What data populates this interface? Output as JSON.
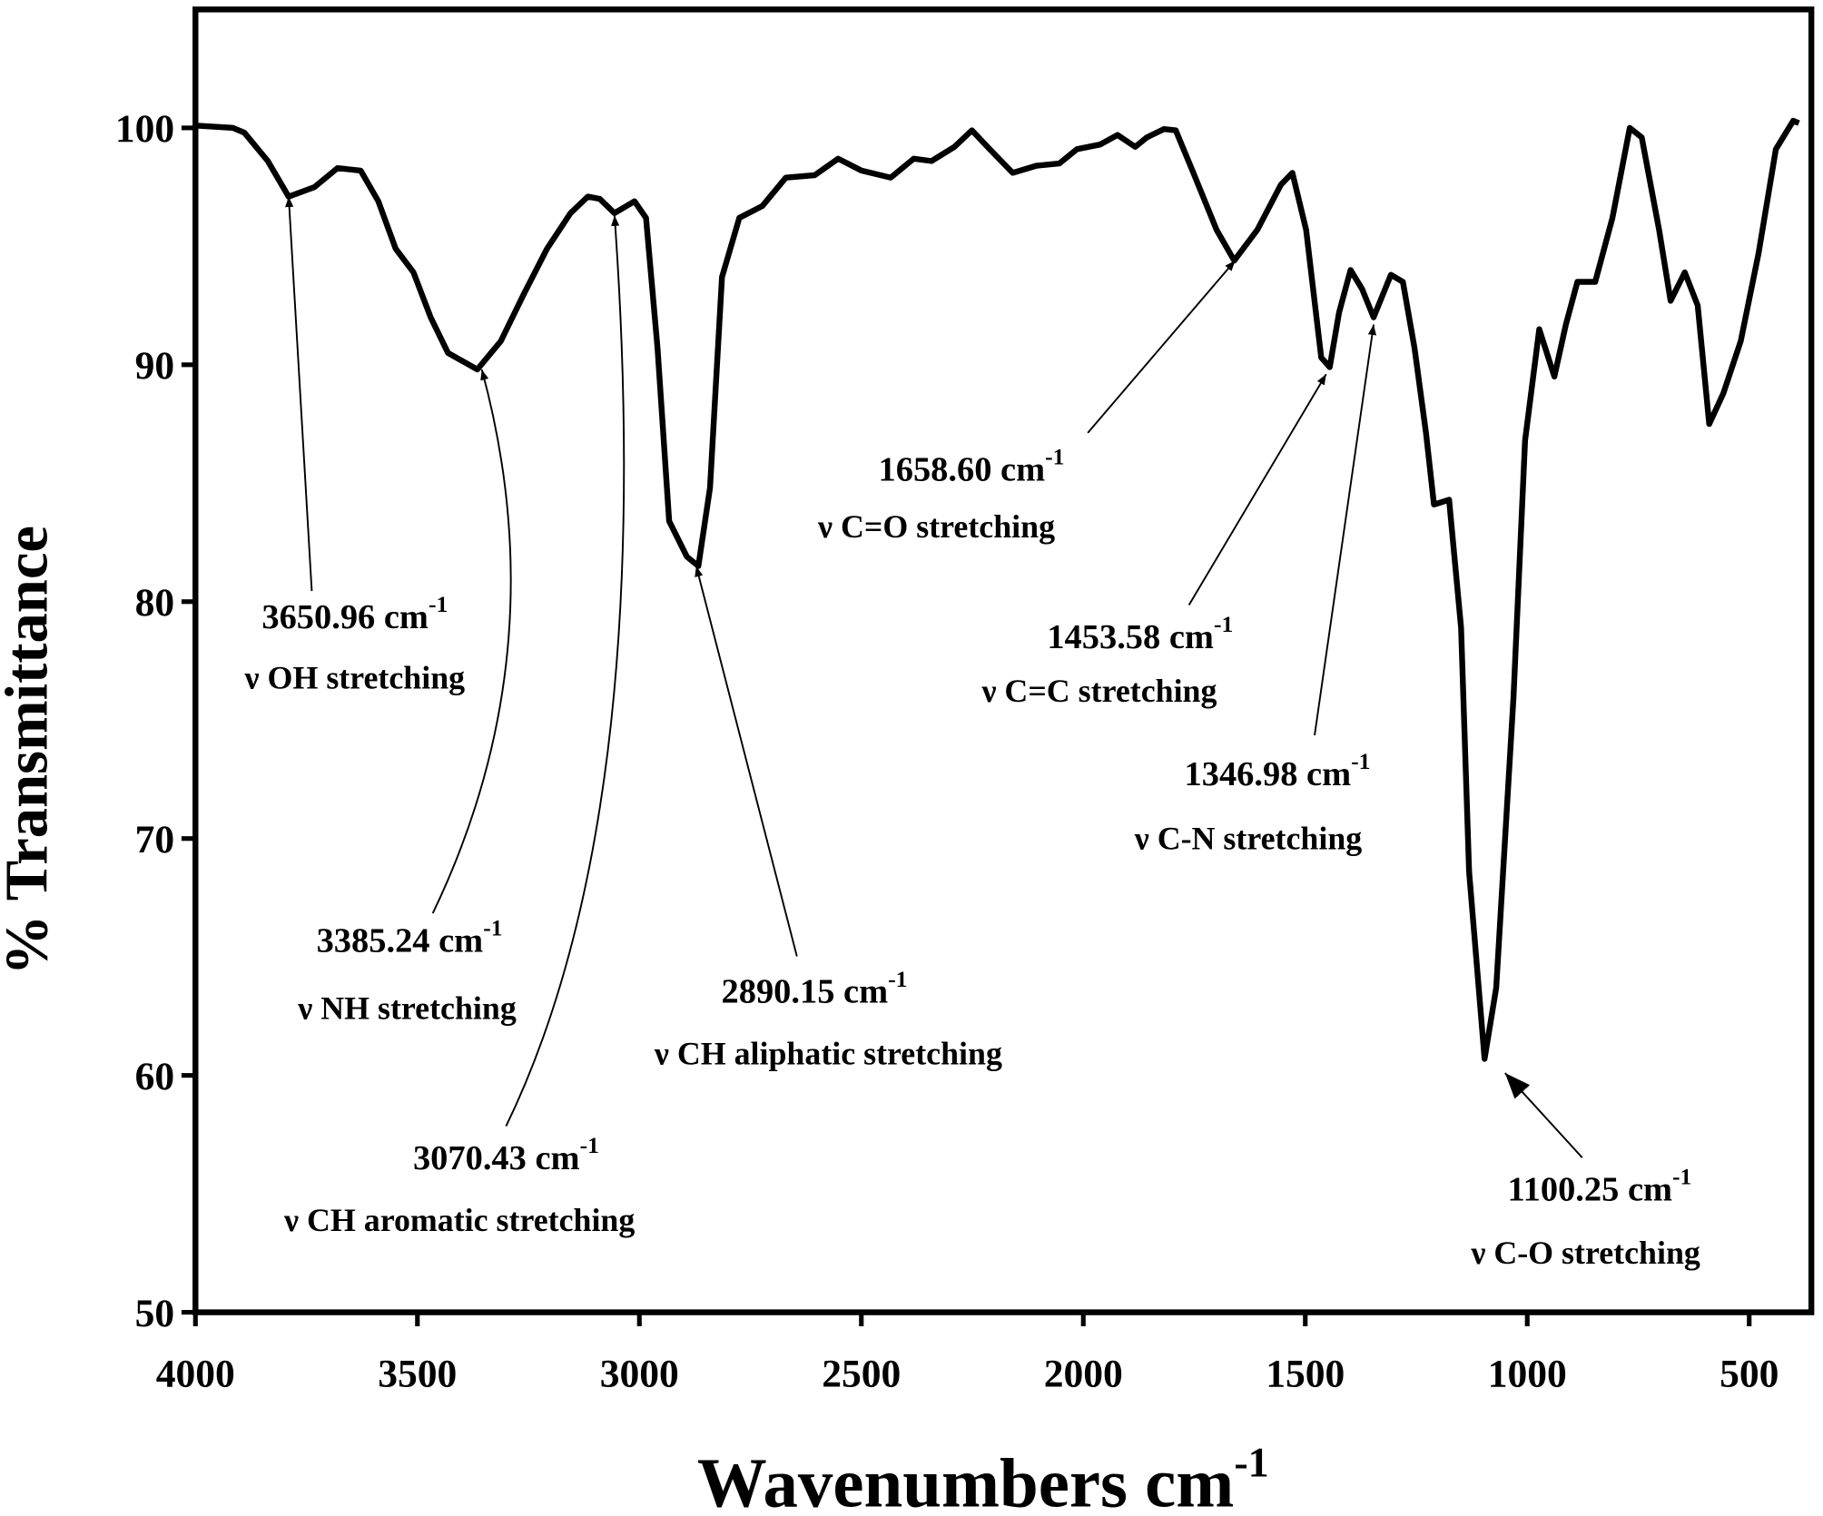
{
  "chart_data": {
    "type": "line",
    "y_label": "% Transmittance",
    "x_label": "Wavenumbers cm",
    "x_label_sup": "-1",
    "xlim": [
      4000,
      360
    ],
    "ylim": [
      50,
      105
    ],
    "xticks": [
      4000,
      3500,
      3000,
      2500,
      2000,
      1500,
      1000,
      500
    ],
    "yticks": [
      50,
      60,
      70,
      80,
      90,
      100
    ],
    "series": [
      {
        "color": "#000000",
        "x": [
          4000,
          3916,
          3890,
          3837,
          3790,
          3732,
          3680,
          3628,
          3588,
          3549,
          3509,
          3470,
          3431,
          3365,
          3312,
          3260,
          3208,
          3155,
          3116,
          3089,
          3056,
          3011,
          2985,
          2959,
          2933,
          2893,
          2867,
          2841,
          2814,
          2775,
          2723,
          2670,
          2605,
          2552,
          2500,
          2434,
          2382,
          2342,
          2290,
          2251,
          2211,
          2159,
          2106,
          2054,
          2014,
          1962,
          1923,
          1883,
          1857,
          1818,
          1792,
          1752,
          1700,
          1660,
          1608,
          1555,
          1529,
          1498,
          1464,
          1445,
          1424,
          1398,
          1372,
          1346,
          1307,
          1280,
          1254,
          1228,
          1210,
          1176,
          1149,
          1131,
          1096,
          1070,
          1031,
          1005,
          973,
          939,
          913,
          887,
          847,
          808,
          769,
          742,
          703,
          677,
          645,
          616,
          590,
          558,
          519,
          479,
          440,
          401,
          388
        ],
        "values": [
          100.1,
          100,
          99.8,
          98.6,
          97.1,
          97.5,
          98.3,
          98.2,
          96.9,
          94.9,
          93.9,
          92.0,
          90.5,
          89.8,
          91.0,
          93.0,
          94.9,
          96.4,
          97.1,
          97.0,
          96.4,
          96.9,
          96.2,
          90.7,
          83.4,
          81.9,
          81.5,
          84.8,
          93.7,
          96.2,
          96.7,
          97.9,
          98.0,
          98.7,
          98.2,
          97.9,
          98.7,
          98.6,
          99.2,
          99.9,
          99.1,
          98.1,
          98.4,
          98.5,
          99.1,
          99.3,
          99.7,
          99.2,
          99.6,
          99.95,
          99.9,
          98.1,
          95.7,
          94.4,
          95.7,
          97.6,
          98.1,
          95.7,
          90.3,
          89.9,
          92.2,
          94.0,
          93.2,
          92.0,
          93.8,
          93.5,
          90.7,
          87.1,
          84.1,
          84.3,
          78.9,
          68.6,
          60.7,
          63.7,
          76.0,
          86.8,
          91.5,
          89.5,
          91.7,
          93.5,
          93.5,
          96.2,
          100,
          99.6,
          95.7,
          92.7,
          93.9,
          92.5,
          87.5,
          88.8,
          91.0,
          94.7,
          99.1,
          100.3,
          100.2
        ]
      }
    ],
    "annotations": [
      {
        "label": "3650.96 cm",
        "sup": "-1",
        "assignment": "ν OH stretching",
        "point": [
          3790,
          97.1
        ]
      },
      {
        "label": "3385.24 cm",
        "sup": "-1",
        "assignment": "ν NH stretching",
        "point": [
          3355,
          89.8
        ]
      },
      {
        "label": "3070.43 cm",
        "sup": "-1",
        "assignment": "ν CH aromatic stretching",
        "point": [
          3056,
          96.3
        ]
      },
      {
        "label": "2890.15 cm",
        "sup": "-1",
        "assignment": "ν CH aliphatic stretching",
        "point": [
          2872,
          81.5
        ]
      },
      {
        "label": "1658.60 cm",
        "sup": "-1",
        "assignment": "ν C=O stretching",
        "point": [
          1658,
          94.4
        ]
      },
      {
        "label": "1453.58 cm",
        "sup": "-1",
        "assignment": "ν C=C stretching",
        "point": [
          1453,
          89.6
        ]
      },
      {
        "label": "1346.98 cm",
        "sup": "-1",
        "assignment": "ν C-N stretching",
        "point": [
          1346,
          91.7
        ]
      },
      {
        "label": "1100.25 cm",
        "sup": "-1",
        "assignment": "ν C-O stretching",
        "point": [
          1050,
          60.1
        ]
      }
    ]
  }
}
